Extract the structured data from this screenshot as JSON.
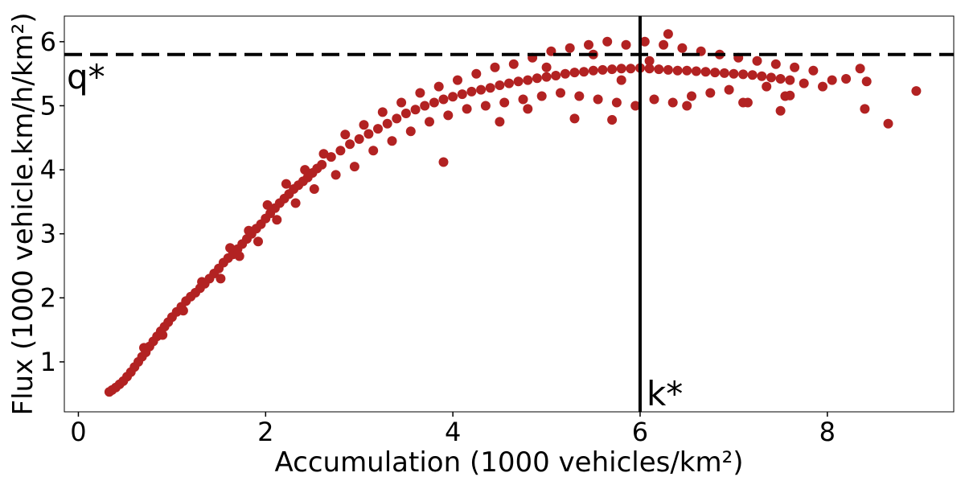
{
  "chart_data": {
    "type": "scatter",
    "title": "",
    "xlabel": "Accumulation (1000 vehicles/km²)",
    "ylabel": "Flux (1000 vehicle.km/h/km²)",
    "xlim": [
      -0.15,
      9.35
    ],
    "ylim": [
      0.22,
      6.4
    ],
    "xticks": [
      0,
      2,
      4,
      6,
      8
    ],
    "yticks": [
      1,
      2,
      3,
      4,
      5,
      6
    ],
    "grid": false,
    "legend": "none",
    "marker_color": "#b22222",
    "reference_lines": [
      {
        "orientation": "horizontal",
        "value": 5.8,
        "style": "dashed",
        "label": "q*"
      },
      {
        "orientation": "vertical",
        "value": 6.0,
        "style": "solid",
        "label": "k*"
      }
    ],
    "series": [
      {
        "points": [
          [
            0.33,
            0.53
          ],
          [
            0.36,
            0.56
          ],
          [
            0.4,
            0.6
          ],
          [
            0.44,
            0.65
          ],
          [
            0.48,
            0.7
          ],
          [
            0.52,
            0.77
          ],
          [
            0.56,
            0.84
          ],
          [
            0.6,
            0.92
          ],
          [
            0.64,
            1.0
          ],
          [
            0.68,
            1.08
          ],
          [
            0.72,
            1.15
          ],
          [
            0.76,
            1.24
          ],
          [
            0.8,
            1.32
          ],
          [
            0.84,
            1.4
          ],
          [
            0.88,
            1.48
          ],
          [
            0.92,
            1.55
          ],
          [
            0.96,
            1.62
          ],
          [
            1.0,
            1.7
          ],
          [
            1.05,
            1.78
          ],
          [
            1.1,
            1.86
          ],
          [
            1.15,
            1.95
          ],
          [
            1.2,
            2.02
          ],
          [
            1.25,
            2.08
          ],
          [
            1.3,
            2.15
          ],
          [
            1.35,
            2.22
          ],
          [
            1.4,
            2.3
          ],
          [
            1.45,
            2.38
          ],
          [
            1.5,
            2.46
          ],
          [
            1.55,
            2.55
          ],
          [
            1.6,
            2.62
          ],
          [
            1.65,
            2.68
          ],
          [
            1.7,
            2.76
          ],
          [
            1.75,
            2.84
          ],
          [
            1.8,
            2.92
          ],
          [
            1.85,
            3.0
          ],
          [
            1.9,
            3.08
          ],
          [
            1.95,
            3.15
          ],
          [
            2.0,
            3.24
          ],
          [
            2.05,
            3.32
          ],
          [
            2.1,
            3.4
          ],
          [
            2.15,
            3.48
          ],
          [
            2.2,
            3.55
          ],
          [
            2.25,
            3.62
          ],
          [
            2.3,
            3.7
          ],
          [
            2.35,
            3.76
          ],
          [
            2.4,
            3.82
          ],
          [
            2.45,
            3.88
          ],
          [
            2.5,
            3.95
          ],
          [
            2.55,
            4.02
          ],
          [
            2.6,
            4.08
          ],
          [
            2.7,
            4.2
          ],
          [
            2.8,
            4.3
          ],
          [
            2.9,
            4.4
          ],
          [
            3.0,
            4.48
          ],
          [
            3.1,
            4.56
          ],
          [
            3.2,
            4.64
          ],
          [
            3.3,
            4.72
          ],
          [
            3.4,
            4.8
          ],
          [
            3.5,
            4.88
          ],
          [
            3.6,
            4.94
          ],
          [
            3.7,
            5.0
          ],
          [
            3.8,
            5.05
          ],
          [
            3.9,
            5.1
          ],
          [
            4.0,
            5.14
          ],
          [
            4.1,
            5.18
          ],
          [
            4.2,
            5.22
          ],
          [
            4.3,
            5.25
          ],
          [
            4.4,
            5.28
          ],
          [
            4.5,
            5.32
          ],
          [
            4.6,
            5.35
          ],
          [
            4.7,
            5.38
          ],
          [
            4.8,
            5.4
          ],
          [
            4.9,
            5.43
          ],
          [
            5.0,
            5.45
          ],
          [
            5.1,
            5.47
          ],
          [
            5.2,
            5.5
          ],
          [
            5.3,
            5.52
          ],
          [
            5.4,
            5.53
          ],
          [
            5.5,
            5.55
          ],
          [
            5.6,
            5.56
          ],
          [
            5.7,
            5.57
          ],
          [
            5.8,
            5.58
          ],
          [
            5.9,
            5.58
          ],
          [
            6.0,
            5.59
          ],
          [
            6.1,
            5.58
          ],
          [
            6.2,
            5.57
          ],
          [
            6.3,
            5.56
          ],
          [
            6.4,
            5.55
          ],
          [
            6.5,
            5.55
          ],
          [
            6.6,
            5.54
          ],
          [
            6.7,
            5.53
          ],
          [
            6.8,
            5.52
          ],
          [
            6.9,
            5.51
          ],
          [
            7.0,
            5.5
          ],
          [
            7.1,
            5.49
          ],
          [
            7.2,
            5.48
          ],
          [
            7.3,
            5.46
          ],
          [
            7.4,
            5.44
          ],
          [
            7.5,
            5.42
          ],
          [
            7.6,
            5.4
          ],
          [
            0.7,
            1.22
          ],
          [
            0.9,
            1.42
          ],
          [
            1.12,
            1.8
          ],
          [
            1.32,
            2.25
          ],
          [
            1.52,
            2.3
          ],
          [
            1.62,
            2.78
          ],
          [
            1.72,
            2.65
          ],
          [
            1.82,
            3.05
          ],
          [
            1.92,
            2.88
          ],
          [
            2.02,
            3.45
          ],
          [
            2.12,
            3.22
          ],
          [
            2.22,
            3.78
          ],
          [
            2.32,
            3.48
          ],
          [
            2.42,
            4.0
          ],
          [
            2.52,
            3.7
          ],
          [
            2.62,
            4.25
          ],
          [
            2.75,
            3.92
          ],
          [
            2.85,
            4.55
          ],
          [
            2.95,
            4.05
          ],
          [
            3.05,
            4.7
          ],
          [
            3.15,
            4.3
          ],
          [
            3.25,
            4.9
          ],
          [
            3.35,
            4.45
          ],
          [
            3.45,
            5.05
          ],
          [
            3.55,
            4.6
          ],
          [
            3.65,
            5.2
          ],
          [
            3.75,
            4.75
          ],
          [
            3.85,
            5.3
          ],
          [
            3.95,
            4.85
          ],
          [
            4.05,
            5.4
          ],
          [
            4.15,
            4.95
          ],
          [
            4.25,
            5.5
          ],
          [
            4.35,
            5.0
          ],
          [
            4.45,
            5.6
          ],
          [
            4.55,
            5.05
          ],
          [
            4.65,
            5.65
          ],
          [
            4.75,
            5.1
          ],
          [
            4.85,
            5.75
          ],
          [
            4.95,
            5.15
          ],
          [
            5.05,
            5.85
          ],
          [
            5.15,
            5.2
          ],
          [
            5.25,
            5.9
          ],
          [
            5.35,
            5.15
          ],
          [
            5.45,
            5.95
          ],
          [
            5.55,
            5.1
          ],
          [
            5.65,
            6.0
          ],
          [
            5.75,
            5.05
          ],
          [
            5.85,
            5.95
          ],
          [
            5.95,
            5.0
          ],
          [
            6.05,
            6.0
          ],
          [
            6.15,
            5.1
          ],
          [
            6.25,
            5.95
          ],
          [
            6.35,
            5.05
          ],
          [
            6.45,
            5.9
          ],
          [
            6.55,
            5.15
          ],
          [
            6.65,
            5.85
          ],
          [
            6.75,
            5.2
          ],
          [
            6.85,
            5.8
          ],
          [
            6.95,
            5.25
          ],
          [
            7.05,
            5.75
          ],
          [
            7.15,
            5.05
          ],
          [
            7.25,
            5.7
          ],
          [
            7.35,
            5.3
          ],
          [
            7.45,
            5.65
          ],
          [
            7.55,
            5.15
          ],
          [
            7.65,
            5.6
          ],
          [
            7.75,
            5.35
          ],
          [
            7.85,
            5.55
          ],
          [
            7.95,
            5.3
          ],
          [
            8.05,
            5.4
          ],
          [
            3.9,
            4.12
          ],
          [
            4.5,
            4.75
          ],
          [
            4.8,
            4.95
          ],
          [
            5.3,
            4.8
          ],
          [
            5.7,
            4.78
          ],
          [
            6.3,
            6.12
          ],
          [
            6.5,
            5.0
          ],
          [
            7.1,
            5.05
          ],
          [
            7.5,
            4.92
          ],
          [
            7.6,
            5.16
          ],
          [
            8.2,
            5.42
          ],
          [
            8.35,
            5.58
          ],
          [
            8.4,
            4.95
          ],
          [
            8.42,
            5.38
          ],
          [
            8.65,
            4.72
          ],
          [
            8.95,
            5.23
          ],
          [
            5.0,
            5.6
          ],
          [
            5.5,
            5.8
          ],
          [
            6.1,
            5.7
          ],
          [
            5.8,
            5.4
          ]
        ]
      }
    ]
  }
}
